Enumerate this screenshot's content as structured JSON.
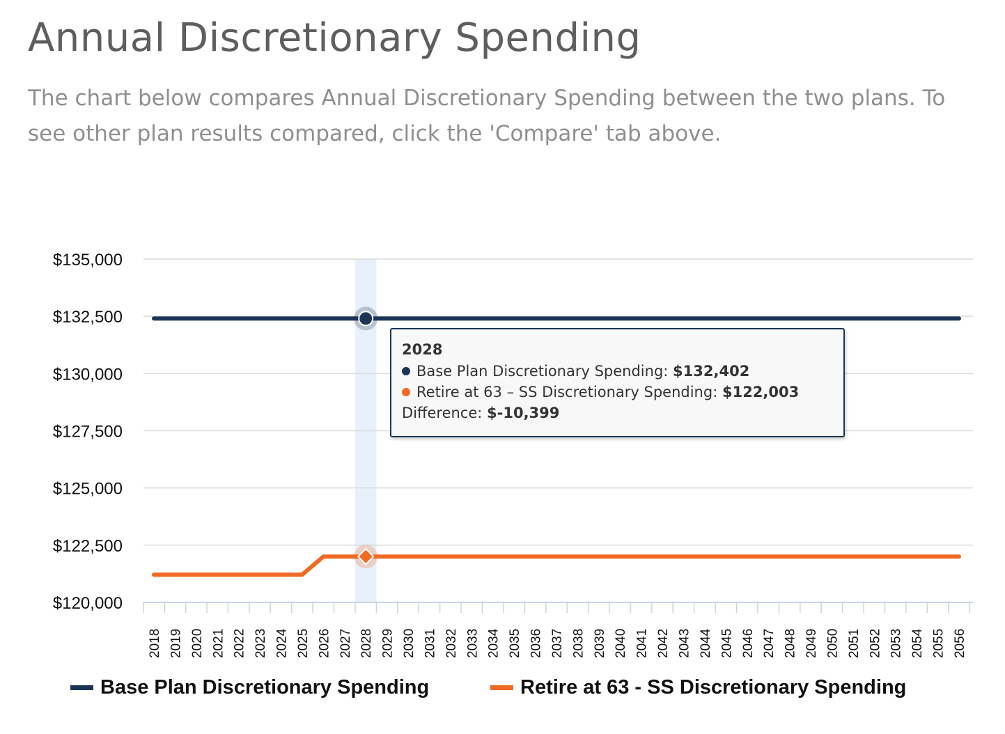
{
  "header": {
    "title": "Annual Discretionary Spending",
    "subtitle": "The chart below compares Annual Discretionary Spending between the two plans. To see other plan results compared, click the 'Compare' tab above."
  },
  "colors": {
    "base": "#1c3557",
    "retire": "#f06a23",
    "highlight": "#e8f0fb",
    "grid": "#dcdcdc"
  },
  "tooltip": {
    "year": "2028",
    "base_label": "Base Plan Discretionary Spending:",
    "base_value": "$132,402",
    "retire_label": "Retire at 63 – SS Discretionary Spending:",
    "retire_value": "$122,003",
    "diff_label": "Difference:",
    "diff_value": "$-10,399"
  },
  "legend": {
    "base": "Base Plan Discretionary Spending",
    "retire": "Retire at 63 - SS Discretionary Spending"
  },
  "chart_data": {
    "type": "line",
    "x": [
      "2018",
      "2019",
      "2020",
      "2021",
      "2022",
      "2023",
      "2024",
      "2025",
      "2026",
      "2027",
      "2028",
      "2029",
      "2030",
      "2031",
      "2032",
      "2033",
      "2034",
      "2035",
      "2036",
      "2037",
      "2038",
      "2039",
      "2040",
      "2041",
      "2042",
      "2043",
      "2044",
      "2045",
      "2046",
      "2047",
      "2048",
      "2049",
      "2050",
      "2051",
      "2052",
      "2053",
      "2054",
      "2055",
      "2056"
    ],
    "ylim": [
      120000,
      135000
    ],
    "yticks": [
      120000,
      122500,
      125000,
      127500,
      130000,
      132500,
      135000
    ],
    "ytick_labels": [
      "$120,000",
      "$122,500",
      "$125,000",
      "$127,500",
      "$130,000",
      "$132,500",
      "$135,000"
    ],
    "grid": true,
    "legend_position": "bottom",
    "highlighted_x": "2028",
    "series": [
      {
        "name": "Base Plan Discretionary Spending",
        "color": "#1c3557",
        "values": [
          132402,
          132402,
          132402,
          132402,
          132402,
          132402,
          132402,
          132402,
          132402,
          132402,
          132402,
          132402,
          132402,
          132402,
          132402,
          132402,
          132402,
          132402,
          132402,
          132402,
          132402,
          132402,
          132402,
          132402,
          132402,
          132402,
          132402,
          132402,
          132402,
          132402,
          132402,
          132402,
          132402,
          132402,
          132402,
          132402,
          132402,
          132402,
          132402
        ]
      },
      {
        "name": "Retire at 63 - SS Discretionary Spending",
        "color": "#f06a23",
        "values": [
          121210,
          121210,
          121210,
          121210,
          121210,
          121210,
          121210,
          121210,
          122003,
          122003,
          122003,
          122003,
          122003,
          122003,
          122003,
          122003,
          122003,
          122003,
          122003,
          122003,
          122003,
          122003,
          122003,
          122003,
          122003,
          122003,
          122003,
          122003,
          122003,
          122003,
          122003,
          122003,
          122003,
          122003,
          122003,
          122003,
          122003,
          122003,
          122003
        ]
      }
    ]
  }
}
